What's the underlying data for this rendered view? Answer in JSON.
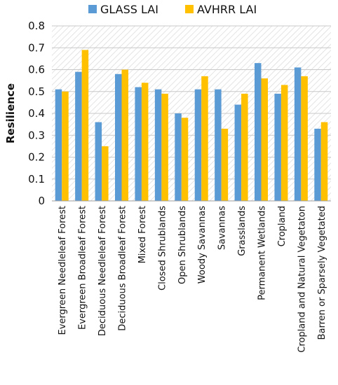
{
  "chart_data": {
    "type": "bar",
    "title": "",
    "xlabel": "",
    "ylabel": "Resilience",
    "ylim": [
      0,
      0.8
    ],
    "yticks": [
      "0",
      "0.1",
      "0.2",
      "0.3",
      "0.4",
      "0.5",
      "0.6",
      "0.7",
      "0.8"
    ],
    "grid": true,
    "legend_position": "top",
    "categories": [
      "Evergreen Needleleaf Forest",
      "Evergreen Broadleaf Forest",
      "Deciduous Needleleaf Forest",
      "Deciduous Broadleaf Forest",
      "Mixed Forest",
      "Closed Shrublands",
      "Open Shrublands",
      "Woody Savannas",
      "Savannas",
      "Grasslands",
      "Permanent Wetlands",
      "Cropland",
      "Cropland and Natural Vegetaton",
      "Barren or Sparsely Vegetated"
    ],
    "series": [
      {
        "name": "GLASS LAI",
        "color": "#5b9bd5",
        "values": [
          0.51,
          0.59,
          0.36,
          0.58,
          0.52,
          0.51,
          0.4,
          0.51,
          0.51,
          0.44,
          0.63,
          0.49,
          0.61,
          0.33
        ]
      },
      {
        "name": "AVHRR LAI",
        "color": "#ffc000",
        "values": [
          0.5,
          0.69,
          0.25,
          0.6,
          0.54,
          0.49,
          0.38,
          0.57,
          0.33,
          0.49,
          0.56,
          0.53,
          0.57,
          0.36
        ]
      }
    ]
  }
}
